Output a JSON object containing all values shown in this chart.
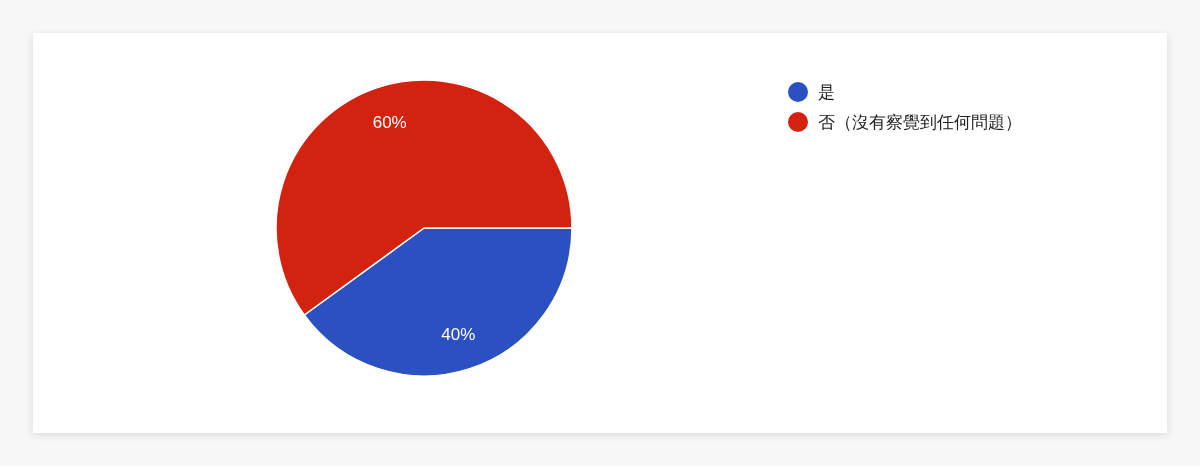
{
  "chart_data": {
    "type": "pie",
    "categories": [
      "是",
      "否（沒有察覺到任何問題）"
    ],
    "values": [
      40,
      60
    ],
    "colors": [
      "#2a50c2",
      "#d32310"
    ],
    "value_labels": [
      "40%",
      "60%"
    ],
    "legend": "top right"
  }
}
